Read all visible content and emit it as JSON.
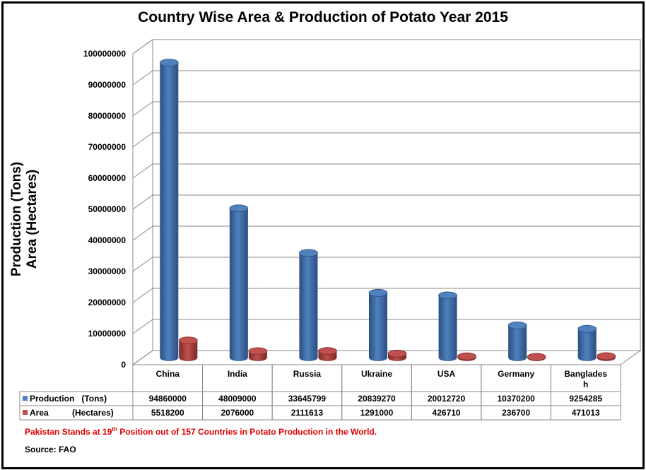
{
  "chart_data": {
    "type": "bar",
    "title": "Country Wise Area & Production of Potato Year 2015",
    "ylabel_line1": "Production (Tons)",
    "ylabel_line2": "Area  (Hectares)",
    "categories": [
      "China",
      "India",
      "Russia",
      "Ukraine",
      "USA",
      "Germany",
      "Banglades h"
    ],
    "series": [
      {
        "name": "Production   (Tons)",
        "values": [
          94860000,
          48009000,
          33645799,
          20839270,
          20012720,
          10370200,
          9254285
        ]
      },
      {
        "name": "Area          (Hectares)",
        "values": [
          5518200,
          2076000,
          2111613,
          1291000,
          426710,
          236700,
          471013
        ]
      }
    ],
    "yticks": [
      "0",
      "10000000",
      "20000000",
      "30000000",
      "40000000",
      "50000000",
      "60000000",
      "70000000",
      "80000000",
      "90000000",
      "100000000"
    ],
    "ylim": [
      0,
      100000000
    ],
    "grid": true,
    "legend": "data-table"
  },
  "colors": {
    "production": "#4f81bd",
    "area": "#c0504d",
    "note": "#e00000"
  },
  "note": {
    "prefix": "Pakistan Stands at 19",
    "sup": "th",
    "suffix": " Position out of 157 Countries in Potato Production in the World."
  },
  "source": "Source: FAO"
}
